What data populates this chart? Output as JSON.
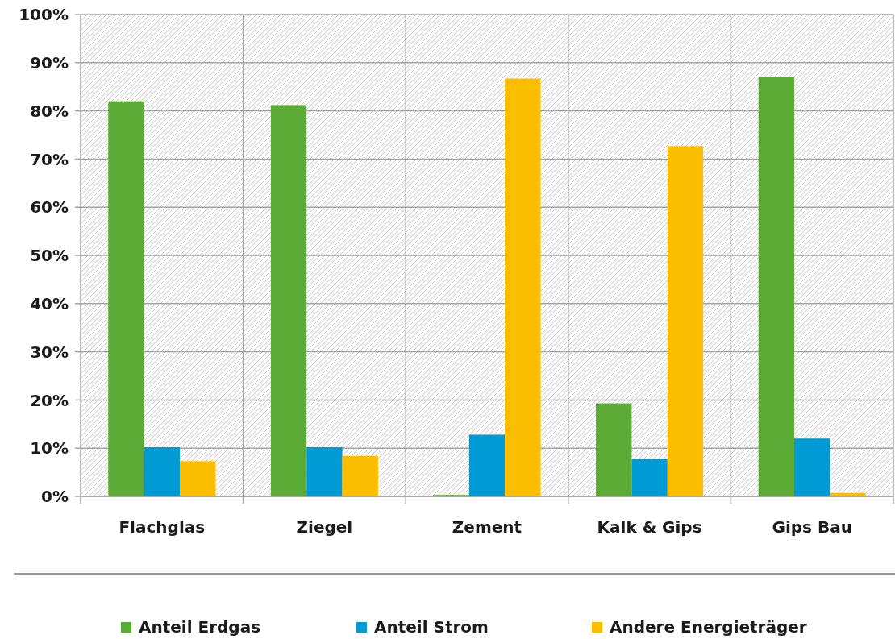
{
  "chart_data": {
    "type": "bar",
    "categories": [
      "Flachglas",
      "Ziegel",
      "Zement",
      "Kalk & Gips",
      "Gips Bau"
    ],
    "series": [
      {
        "name": "Anteil Erdgas",
        "color": "#5bab36",
        "values": [
          82.0,
          81.2,
          0.3,
          19.3,
          87.1
        ]
      },
      {
        "name": "Anteil Strom",
        "color": "#009bd4",
        "values": [
          10.2,
          10.2,
          12.8,
          7.7,
          12.0
        ]
      },
      {
        "name": "Andere Energieträger",
        "color": "#fbbd00",
        "values": [
          7.3,
          8.4,
          86.7,
          72.7,
          0.7
        ]
      }
    ],
    "ylim": [
      0,
      100
    ],
    "yticks": [
      {
        "value": 0,
        "label": "0%"
      },
      {
        "value": 10,
        "label": "10%"
      },
      {
        "value": 20,
        "label": "20%"
      },
      {
        "value": 30,
        "label": "30%"
      },
      {
        "value": 40,
        "label": "40%"
      },
      {
        "value": 50,
        "label": "50%"
      },
      {
        "value": 60,
        "label": "60%"
      },
      {
        "value": 70,
        "label": "70%"
      },
      {
        "value": 80,
        "label": "80%"
      },
      {
        "value": 90,
        "label": "90%"
      },
      {
        "value": 100,
        "label": "100%"
      }
    ],
    "grid": true,
    "legend": "bottom"
  }
}
